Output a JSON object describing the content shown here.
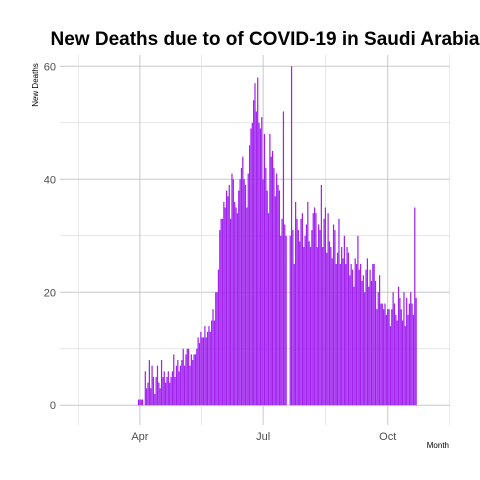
{
  "chart_data": {
    "type": "bar",
    "title": "New Deaths due to of COVID-19 in Saudi Arabia",
    "xlabel": "Month",
    "ylabel": "New Deaths",
    "bar_color": "#a020f0",
    "grid": true,
    "start_date": "2020-03-01",
    "ylim": [
      -3.5,
      62
    ],
    "xlim_days": [
      -28,
      260
    ],
    "x_ticks": [
      {
        "label": "Apr",
        "day": 31
      },
      {
        "label": "Jul",
        "day": 122
      },
      {
        "label": "Oct",
        "day": 214
      }
    ],
    "y_ticks": [
      0,
      20,
      40,
      60
    ],
    "values": [
      0,
      0,
      0,
      0,
      0,
      0,
      0,
      0,
      0,
      0,
      0,
      0,
      0,
      0,
      0,
      0,
      0,
      0,
      0,
      0,
      0,
      0,
      0,
      0,
      0,
      0,
      0,
      0,
      0,
      0,
      1,
      1,
      1,
      1,
      0,
      6,
      3,
      4,
      8,
      3,
      7,
      5,
      2,
      5,
      7,
      4,
      3,
      8,
      5,
      6,
      4,
      5,
      6,
      4,
      5,
      6,
      9,
      5,
      7,
      8,
      6,
      7,
      8,
      10,
      7,
      9,
      10,
      10,
      7,
      9,
      8,
      9,
      9,
      10,
      12,
      11,
      13,
      12,
      12,
      14,
      12,
      13,
      14,
      13,
      15,
      17,
      15,
      20,
      20,
      24,
      31,
      33,
      33,
      36,
      35,
      38,
      37,
      39,
      33,
      41,
      40,
      36,
      35,
      34,
      38,
      40,
      42,
      44,
      40,
      39,
      35,
      41,
      46,
      49,
      50,
      54,
      57,
      52,
      58,
      50,
      49,
      51,
      40,
      48,
      42,
      38,
      34,
      48,
      44,
      45,
      42,
      37,
      41,
      39,
      38,
      30,
      33,
      52,
      32,
      30,
      0,
      0,
      30,
      60,
      31,
      25,
      36,
      33,
      31,
      29,
      33,
      34,
      28,
      30,
      32,
      36,
      29,
      28,
      31,
      34,
      35,
      34,
      28,
      32,
      31,
      39,
      28,
      33,
      35,
      27,
      34,
      29,
      28,
      26,
      32,
      31,
      25,
      27,
      33,
      25,
      28,
      26,
      30,
      25,
      28,
      27,
      23,
      25,
      24,
      21,
      26,
      25,
      30,
      24,
      25,
      22,
      23,
      20,
      24,
      26,
      21,
      24,
      22,
      25,
      25,
      22,
      17,
      20,
      23,
      18,
      18,
      17,
      18,
      16,
      17,
      17,
      14,
      17,
      20,
      18,
      16,
      15,
      21,
      19,
      17,
      15,
      20,
      14,
      19,
      16,
      18,
      20,
      18,
      16,
      35,
      19
    ]
  }
}
